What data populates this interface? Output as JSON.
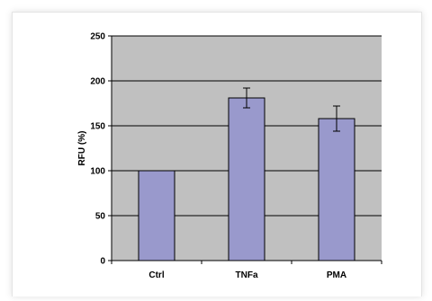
{
  "chart_data": {
    "type": "bar",
    "title": "",
    "xlabel": "",
    "ylabel": "RFU (%)",
    "categories": [
      "Ctrl",
      "TNFa",
      "PMA"
    ],
    "values": [
      100,
      181,
      158
    ],
    "errors": [
      0,
      11,
      14
    ],
    "ylim": [
      0,
      250
    ],
    "yticks": [
      0,
      50,
      100,
      150,
      200,
      250
    ],
    "grid": true,
    "legend": "none",
    "bar_color": "#9999cc",
    "plot_background": "#c0c0c0"
  }
}
